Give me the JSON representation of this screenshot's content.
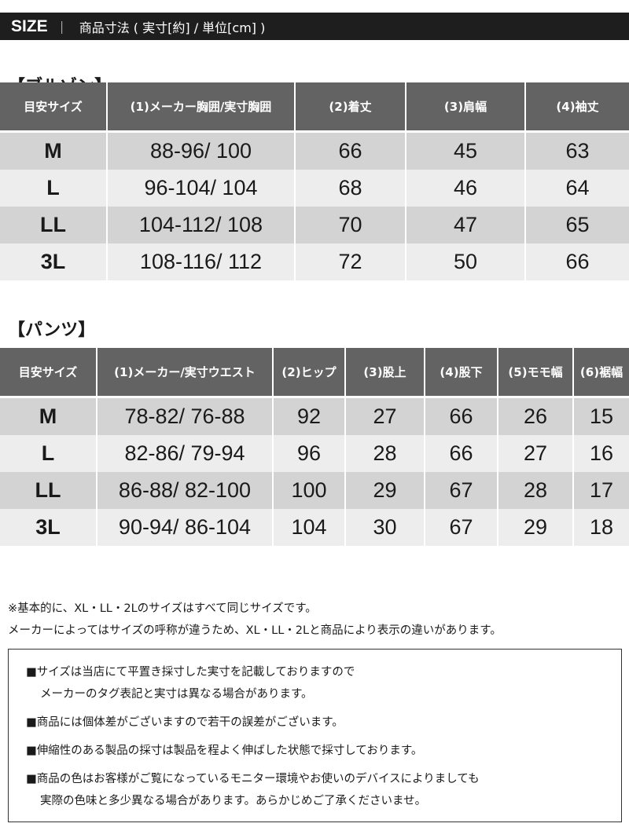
{
  "header": {
    "size_label": "SIZE",
    "separator": "｜",
    "title": "商品寸法 ( 実寸[約] / 単位[cm] )"
  },
  "blouson": {
    "title": "【ブルゾン】",
    "columns": [
      "目安サイズ",
      "(1)メーカー胸囲/実寸胸囲",
      "(2)着丈",
      "(3)肩幅",
      "(4)袖丈"
    ],
    "rows": [
      [
        "M",
        "88-96/ 100",
        "66",
        "45",
        "63"
      ],
      [
        "L",
        "96-104/ 104",
        "68",
        "46",
        "64"
      ],
      [
        "LL",
        "104-112/ 108",
        "70",
        "47",
        "65"
      ],
      [
        "3L",
        "108-116/ 112",
        "72",
        "50",
        "66"
      ]
    ]
  },
  "pants": {
    "title": "【パンツ】",
    "columns": [
      "目安サイズ",
      "(1)メーカー/実寸ウエスト",
      "(2)ヒップ",
      "(3)股上",
      "(4)股下",
      "(5)モモ幅",
      "(6)裾幅"
    ],
    "rows": [
      [
        "M",
        "78-82/ 76-88",
        "92",
        "27",
        "66",
        "26",
        "15"
      ],
      [
        "L",
        "82-86/ 79-94",
        "96",
        "28",
        "66",
        "27",
        "16"
      ],
      [
        "LL",
        "86-88/ 82-100",
        "100",
        "29",
        "67",
        "28",
        "17"
      ],
      [
        "3L",
        "90-94/ 86-104",
        "104",
        "30",
        "67",
        "29",
        "18"
      ]
    ]
  },
  "notes": [
    "※基本的に、XL・LL・2Lのサイズはすべて同じサイズです。",
    "メーカーによってはサイズの呼称が違うため、XL・LL・2Lと商品により表示の違いがあります。"
  ],
  "box": [
    "■サイズは当店にて平置き採寸した実寸を記載しておりますので",
    "メーカーのタグ表記と実寸は異なる場合があります。",
    "■商品には個体差がございますので若干の誤差がございます。",
    "■伸縮性のある製品の採寸は製品を程よく伸ばした状態で採寸しております。",
    "■商品の色はお客様がご覧になっているモニター環境やお使いのデバイスによりましても",
    "実際の色味と多少異なる場合があります。あらかじめご了承くださいませ。"
  ]
}
